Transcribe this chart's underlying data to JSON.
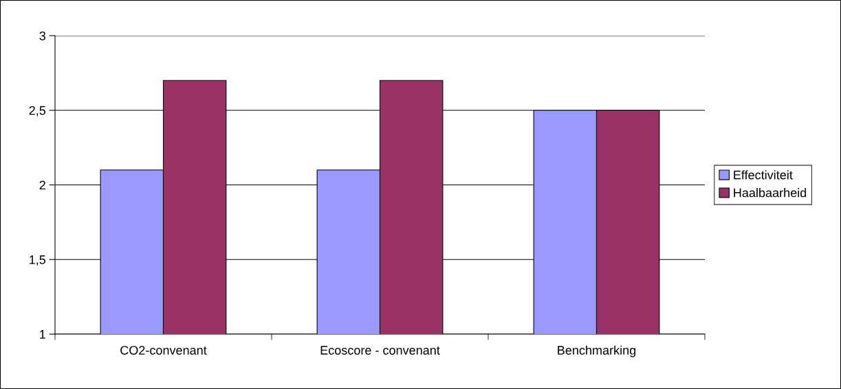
{
  "chart_data": {
    "type": "bar",
    "categories": [
      "CO2-convenant",
      "Ecoscore - convenant",
      "Benchmarking"
    ],
    "series": [
      {
        "name": "Effectiviteit",
        "color": "#9999ff",
        "values": [
          2.1,
          2.1,
          2.5
        ]
      },
      {
        "name": "Haalbaarheid",
        "color": "#993366",
        "values": [
          2.7,
          2.7,
          2.5
        ]
      }
    ],
    "ylim": [
      1,
      3
    ],
    "yticks": [
      1,
      {
        "value": 1.5,
        "label": "1,5"
      },
      2,
      {
        "value": 2.5,
        "label": "2,5"
      },
      3
    ],
    "grid": "y",
    "legend": "right"
  }
}
